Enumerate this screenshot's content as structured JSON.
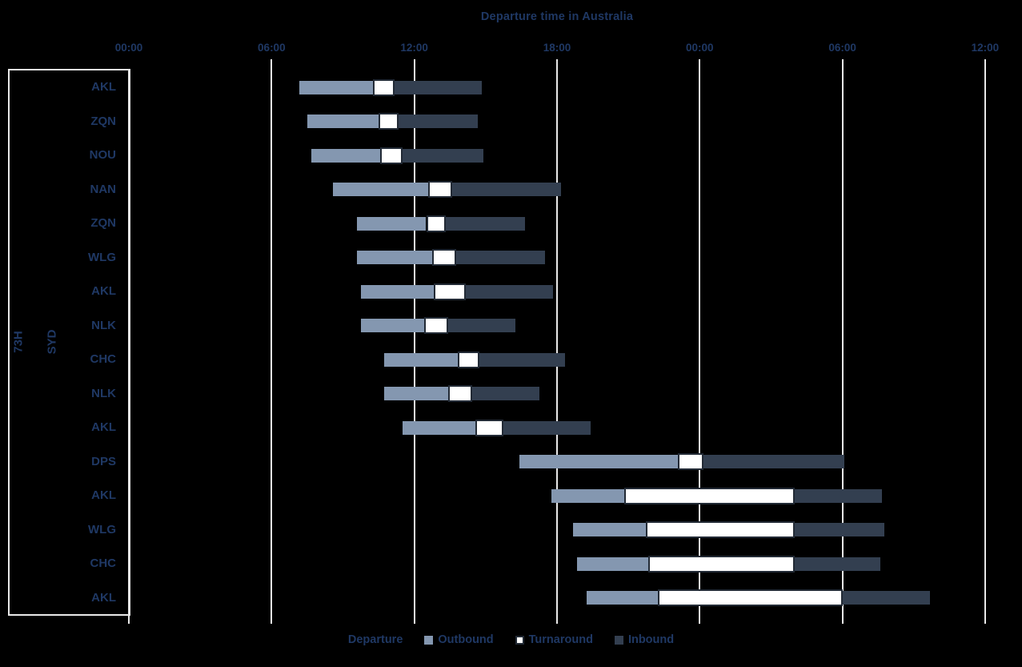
{
  "chart_data": {
    "type": "gantt-stacked-bar",
    "title": "Departure time in Australia",
    "group_labels": [
      "73H",
      "SYD"
    ],
    "x_axis": {
      "unit": "time of day",
      "range_hours": [
        0,
        36
      ],
      "ticks": [
        {
          "label": "00:00",
          "hour": 0
        },
        {
          "label": "06:00",
          "hour": 6
        },
        {
          "label": "12:00",
          "hour": 12
        },
        {
          "label": "18:00",
          "hour": 18
        },
        {
          "label": "00:00",
          "hour": 24
        },
        {
          "label": "06:00",
          "hour": 30
        },
        {
          "label": "12:00",
          "hour": 36
        }
      ],
      "grid": true
    },
    "legend_items": [
      {
        "label": "Departure",
        "swatch": null
      },
      {
        "label": "Outbound",
        "swatch": "#8497B0"
      },
      {
        "label": "Turnaround",
        "swatch": "#FFFFFF"
      },
      {
        "label": "Inbound",
        "swatch": "#333F50"
      }
    ],
    "rows": [
      {
        "label": "AKL",
        "departure_h": 7.17,
        "outbound_end_h": 10.25,
        "turnaround_end_h": 11.17,
        "inbound_end_h": 14.83
      },
      {
        "label": "ZQN",
        "departure_h": 7.5,
        "outbound_end_h": 10.5,
        "turnaround_end_h": 11.33,
        "inbound_end_h": 14.67
      },
      {
        "label": "NOU",
        "departure_h": 7.67,
        "outbound_end_h": 10.58,
        "turnaround_end_h": 11.5,
        "inbound_end_h": 14.92
      },
      {
        "label": "NAN",
        "departure_h": 8.58,
        "outbound_end_h": 12.58,
        "turnaround_end_h": 13.58,
        "inbound_end_h": 18.17
      },
      {
        "label": "ZQN",
        "departure_h": 9.58,
        "outbound_end_h": 12.5,
        "turnaround_end_h": 13.33,
        "inbound_end_h": 16.67
      },
      {
        "label": "WLG",
        "departure_h": 9.58,
        "outbound_end_h": 12.75,
        "turnaround_end_h": 13.75,
        "inbound_end_h": 17.5
      },
      {
        "label": "AKL",
        "departure_h": 9.75,
        "outbound_end_h": 12.83,
        "turnaround_end_h": 14.17,
        "inbound_end_h": 17.83
      },
      {
        "label": "NLK",
        "departure_h": 9.75,
        "outbound_end_h": 12.42,
        "turnaround_end_h": 13.42,
        "inbound_end_h": 16.25
      },
      {
        "label": "CHC",
        "departure_h": 10.75,
        "outbound_end_h": 13.83,
        "turnaround_end_h": 14.75,
        "inbound_end_h": 18.33
      },
      {
        "label": "NLK",
        "departure_h": 10.75,
        "outbound_end_h": 13.42,
        "turnaround_end_h": 14.42,
        "inbound_end_h": 17.25
      },
      {
        "label": "AKL",
        "departure_h": 11.5,
        "outbound_end_h": 14.58,
        "turnaround_end_h": 15.75,
        "inbound_end_h": 19.42
      },
      {
        "label": "DPS",
        "departure_h": 16.42,
        "outbound_end_h": 23.08,
        "turnaround_end_h": 24.17,
        "inbound_end_h": 30.08
      },
      {
        "label": "AKL",
        "departure_h": 17.75,
        "outbound_end_h": 20.83,
        "turnaround_end_h": 28.0,
        "inbound_end_h": 31.67
      },
      {
        "label": "WLG",
        "departure_h": 18.67,
        "outbound_end_h": 21.75,
        "turnaround_end_h": 28.0,
        "inbound_end_h": 31.75
      },
      {
        "label": "CHC",
        "departure_h": 18.83,
        "outbound_end_h": 21.83,
        "turnaround_end_h": 28.0,
        "inbound_end_h": 31.58
      },
      {
        "label": "AKL",
        "departure_h": 19.25,
        "outbound_end_h": 22.25,
        "turnaround_end_h": 30.0,
        "inbound_end_h": 33.67
      }
    ],
    "colors": {
      "background": "#000000",
      "text": "#1F3864",
      "outbound": "#8497B0",
      "turnaround_fill": "#FFFFFF",
      "turnaround_border": "#222A35",
      "inbound": "#333F50",
      "gridline": "#E9E9E9"
    }
  }
}
